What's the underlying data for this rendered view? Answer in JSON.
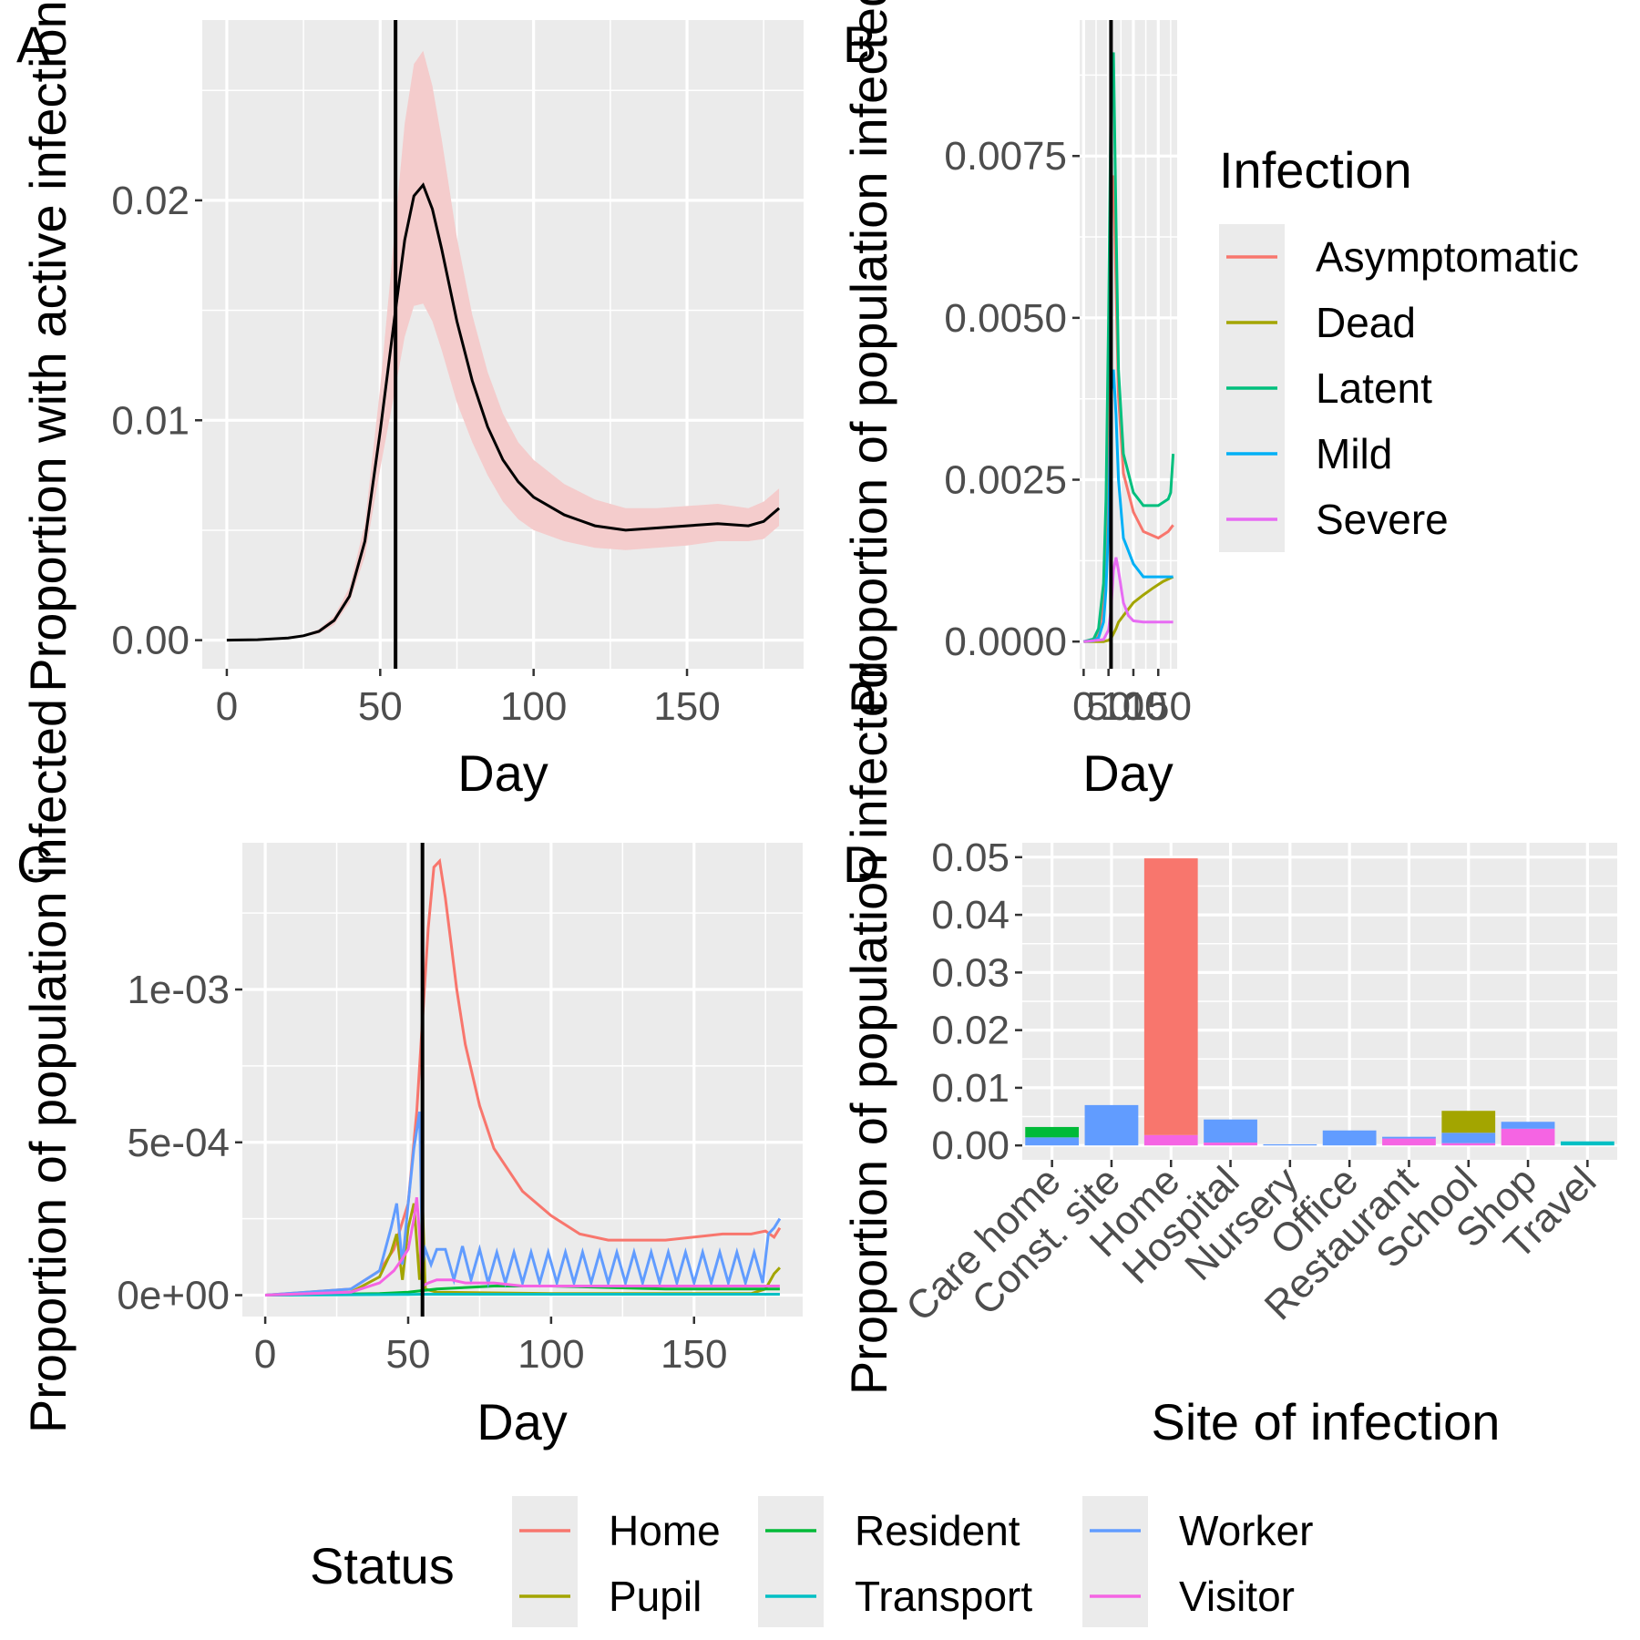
{
  "chart_data": [
    {
      "panel": "A",
      "type": "line",
      "xlabel": "Day",
      "ylabel": "Proportion with active infection",
      "xlim": [
        -8,
        188
      ],
      "ylim": [
        -0.0013,
        0.0282
      ],
      "xticks": [
        0,
        50,
        100,
        150
      ],
      "xtick_labels": [
        "0",
        "50",
        "100",
        "150"
      ],
      "yticks": [
        0,
        0.01,
        0.02
      ],
      "ytick_labels": [
        "0.00",
        "0.01",
        "0.02"
      ],
      "vline": 55,
      "ribbon_color": "#f4cccc",
      "line_color": "#000000",
      "x": [
        0,
        10,
        20,
        25,
        30,
        35,
        40,
        45,
        50,
        55,
        58,
        61,
        64,
        67,
        70,
        75,
        80,
        85,
        90,
        95,
        100,
        110,
        120,
        130,
        140,
        150,
        160,
        170,
        175,
        180
      ],
      "y": [
        0,
        2e-05,
        0.0001,
        0.0002,
        0.0004,
        0.0009,
        0.002,
        0.0045,
        0.0095,
        0.015,
        0.0182,
        0.0202,
        0.0207,
        0.0196,
        0.0178,
        0.0145,
        0.0118,
        0.0097,
        0.0082,
        0.0072,
        0.0065,
        0.0057,
        0.0052,
        0.005,
        0.0051,
        0.0052,
        0.0053,
        0.0052,
        0.0054,
        0.006
      ],
      "lower": [
        0,
        1e-05,
        8e-05,
        0.00016,
        0.0003,
        0.0007,
        0.0017,
        0.0038,
        0.0078,
        0.0115,
        0.0138,
        0.0152,
        0.0153,
        0.0145,
        0.0132,
        0.0108,
        0.009,
        0.0075,
        0.0063,
        0.0055,
        0.005,
        0.0045,
        0.0042,
        0.0041,
        0.0042,
        0.0043,
        0.0045,
        0.0045,
        0.0046,
        0.0052
      ],
      "upper": [
        0,
        3e-05,
        0.00013,
        0.00025,
        0.0005,
        0.0011,
        0.0024,
        0.0053,
        0.0115,
        0.019,
        0.0235,
        0.0262,
        0.0268,
        0.0252,
        0.0228,
        0.0183,
        0.0148,
        0.0122,
        0.0103,
        0.009,
        0.0082,
        0.0071,
        0.0064,
        0.006,
        0.006,
        0.0061,
        0.0062,
        0.006,
        0.0063,
        0.0069
      ]
    },
    {
      "panel": "B",
      "type": "line",
      "xlabel": "Day",
      "ylabel": "Proportion of population infected",
      "xlim": [
        -8,
        188
      ],
      "ylim": [
        -0.00042,
        0.0096
      ],
      "xticks": [
        0,
        50,
        100,
        150
      ],
      "xtick_labels": [
        "0",
        "50",
        "100",
        "150"
      ],
      "yticks": [
        0,
        0.0025,
        0.005,
        0.0075
      ],
      "ytick_labels": [
        "0.0000",
        "0.0025",
        "0.0050",
        "0.0075"
      ],
      "vline": 55,
      "legend_title": "Infection",
      "legend_position": "right",
      "series": [
        {
          "name": "Asymptomatic",
          "color": "#F8766D",
          "x": [
            0,
            20,
            30,
            40,
            45,
            50,
            55,
            60,
            65,
            70,
            80,
            100,
            120,
            150,
            170,
            180
          ],
          "y": [
            0,
            2e-05,
            0.0001,
            0.0006,
            0.0015,
            0.0035,
            0.0068,
            0.0072,
            0.0055,
            0.0038,
            0.0026,
            0.002,
            0.0017,
            0.0016,
            0.0017,
            0.0018
          ]
        },
        {
          "name": "Dead",
          "color": "#A3A500",
          "x": [
            0,
            40,
            50,
            55,
            60,
            65,
            70,
            80,
            90,
            100,
            120,
            140,
            160,
            180
          ],
          "y": [
            0,
            0,
            2e-05,
            5e-05,
            0.00012,
            0.0002,
            0.0003,
            0.0004,
            0.0005,
            0.0006,
            0.00072,
            0.00083,
            0.00093,
            0.001
          ]
        },
        {
          "name": "Latent",
          "color": "#00BF7D",
          "x": [
            0,
            20,
            30,
            40,
            45,
            50,
            55,
            60,
            65,
            70,
            80,
            100,
            120,
            150,
            170,
            175,
            180
          ],
          "y": [
            0,
            4e-05,
            0.0002,
            0.0009,
            0.0022,
            0.005,
            0.0085,
            0.0091,
            0.0065,
            0.0042,
            0.0029,
            0.0023,
            0.0021,
            0.0021,
            0.0022,
            0.0023,
            0.0029
          ]
        },
        {
          "name": "Mild",
          "color": "#00B0F6",
          "x": [
            0,
            20,
            30,
            40,
            45,
            50,
            55,
            60,
            65,
            70,
            80,
            100,
            120,
            150,
            180
          ],
          "y": [
            0,
            1e-05,
            6e-05,
            0.0003,
            0.0008,
            0.0018,
            0.0038,
            0.0042,
            0.0035,
            0.0025,
            0.0016,
            0.0012,
            0.001,
            0.001,
            0.001
          ]
        },
        {
          "name": "Severe",
          "color": "#E76BF3",
          "x": [
            0,
            40,
            50,
            55,
            60,
            65,
            70,
            80,
            90,
            100,
            120,
            150,
            180
          ],
          "y": [
            0,
            3e-05,
            0.00018,
            0.0005,
            0.0011,
            0.0013,
            0.0011,
            0.0006,
            0.0004,
            0.00032,
            0.0003,
            0.0003,
            0.0003
          ]
        }
      ]
    },
    {
      "panel": "C",
      "type": "line",
      "xlabel": "Day",
      "ylabel": "Proportion of population infected",
      "xlim": [
        -8,
        188
      ],
      "ylim": [
        -7e-05,
        0.00148
      ],
      "xticks": [
        0,
        50,
        100,
        150
      ],
      "xtick_labels": [
        "0",
        "50",
        "100",
        "150"
      ],
      "yticks": [
        0,
        0.0005,
        0.001
      ],
      "ytick_labels": [
        "0e+00",
        "5e-04",
        "1e-03"
      ],
      "vline": 55,
      "legend_title": "Status",
      "legend_position": "bottom",
      "series": [
        {
          "name": "Home",
          "color": "#F8766D",
          "x": [
            0,
            30,
            40,
            45,
            50,
            53,
            55,
            57,
            59,
            61,
            63,
            65,
            67,
            70,
            75,
            80,
            90,
            100,
            110,
            120,
            140,
            160,
            170,
            175,
            178,
            180
          ],
          "y": [
            0,
            2e-05,
            8e-05,
            0.00015,
            0.0003,
            0.0006,
            0.0009,
            0.0012,
            0.0014,
            0.00142,
            0.0013,
            0.00115,
            0.001,
            0.00082,
            0.00062,
            0.00048,
            0.00034,
            0.00026,
            0.0002,
            0.00018,
            0.00018,
            0.0002,
            0.0002,
            0.00021,
            0.00019,
            0.00022
          ]
        },
        {
          "name": "Pupil",
          "color": "#A3A500",
          "x": [
            0,
            30,
            40,
            44,
            46,
            48,
            50,
            52,
            54,
            55,
            56,
            60,
            100,
            170,
            175,
            178,
            180
          ],
          "y": [
            0,
            1e-05,
            6e-05,
            0.00014,
            0.0002,
            5e-05,
            0.00022,
            0.0003,
            5e-05,
            0.0003,
            2e-05,
            1e-05,
            5e-06,
            5e-06,
            2e-05,
            7e-05,
            9e-05
          ]
        },
        {
          "name": "Resident",
          "color": "#00BA38",
          "x": [
            0,
            40,
            50,
            55,
            60,
            70,
            80,
            90,
            100,
            120,
            140,
            160,
            180
          ],
          "y": [
            0,
            5e-06,
            1e-05,
            1.5e-05,
            2e-05,
            2.5e-05,
            3e-05,
            3e-05,
            3e-05,
            2.5e-05,
            2e-05,
            2e-05,
            2e-05
          ]
        },
        {
          "name": "Transport",
          "color": "#00BFC4",
          "x": [
            0,
            50,
            55,
            60,
            100,
            180
          ],
          "y": [
            0,
            2e-06,
            3e-06,
            3e-06,
            3e-06,
            3e-06
          ]
        },
        {
          "name": "Worker",
          "color": "#619CFF",
          "x": [
            0,
            30,
            40,
            44,
            46,
            48,
            50,
            52,
            54,
            55,
            56,
            58,
            60,
            63,
            66,
            69,
            72,
            75,
            78,
            81,
            84,
            87,
            90,
            93,
            96,
            99,
            102,
            105,
            108,
            111,
            114,
            117,
            120,
            123,
            126,
            129,
            132,
            135,
            138,
            141,
            144,
            147,
            150,
            153,
            156,
            159,
            162,
            165,
            168,
            171,
            174,
            176,
            178,
            180
          ],
          "y": [
            0,
            2e-05,
            8e-05,
            0.00022,
            0.0003,
            0.0001,
            0.0003,
            0.00048,
            0.0006,
            0.0001,
            0.00015,
            0.0001,
            0.00015,
            0.00015,
            5e-05,
            0.00016,
            5e-05,
            0.00015,
            4e-05,
            0.00014,
            4e-05,
            0.00014,
            4e-05,
            0.00014,
            4e-05,
            0.00014,
            4e-05,
            0.00014,
            4e-05,
            0.00014,
            4e-05,
            0.00014,
            4e-05,
            0.00014,
            4e-05,
            0.00014,
            4e-05,
            0.00014,
            4e-05,
            0.00014,
            4e-05,
            0.00014,
            4e-05,
            0.00014,
            4e-05,
            0.00014,
            4e-05,
            0.00014,
            4e-05,
            0.00014,
            4e-05,
            0.0002,
            0.00022,
            0.00025
          ]
        },
        {
          "name": "Visitor",
          "color": "#F564E3",
          "x": [
            0,
            30,
            40,
            45,
            48,
            50,
            52,
            53,
            54,
            55,
            57,
            60,
            65,
            70,
            80,
            90,
            100,
            120,
            140,
            160,
            180
          ],
          "y": [
            0,
            1e-05,
            4e-05,
            8e-05,
            0.00012,
            0.00015,
            0.00025,
            0.00032,
            0.0002,
            3e-05,
            4e-05,
            5e-05,
            5e-05,
            4e-05,
            4e-05,
            3e-05,
            3e-05,
            3e-05,
            3e-05,
            3e-05,
            3e-05
          ]
        }
      ]
    },
    {
      "panel": "D",
      "type": "bar",
      "stacked": true,
      "xlabel": "Site of infection",
      "ylabel": "Proportion of population infected",
      "categories": [
        "Care home",
        "Const. site",
        "Home",
        "Hospital",
        "Nursery",
        "Office",
        "Restaurant",
        "School",
        "Shop",
        "Travel"
      ],
      "ylim": [
        -0.0025,
        0.0525
      ],
      "yticks": [
        0,
        0.01,
        0.02,
        0.03,
        0.04,
        0.05
      ],
      "ytick_labels": [
        "0.00",
        "0.01",
        "0.02",
        "0.03",
        "0.04",
        "0.05"
      ],
      "series": [
        {
          "name": "Home",
          "color": "#F8766D",
          "values": [
            0,
            0,
            0.048,
            0,
            0,
            0,
            0,
            0,
            0,
            0
          ]
        },
        {
          "name": "Pupil",
          "color": "#A3A500",
          "values": [
            0,
            0,
            0,
            0,
            0,
            0,
            0,
            0.0038,
            0,
            0
          ]
        },
        {
          "name": "Resident",
          "color": "#00BA38",
          "values": [
            0.0018,
            0,
            0,
            0,
            0,
            0,
            0,
            0,
            0,
            0
          ]
        },
        {
          "name": "Transport",
          "color": "#00BFC4",
          "values": [
            0,
            0,
            0,
            0,
            0,
            0,
            0,
            0,
            0,
            0.0007
          ]
        },
        {
          "name": "Worker",
          "color": "#619CFF",
          "values": [
            0.0014,
            0.007,
            0,
            0.004,
            0.0002,
            0.0026,
            0.0003,
            0.0018,
            0.0012,
            0
          ]
        },
        {
          "name": "Visitor",
          "color": "#F564E3",
          "values": [
            0,
            0,
            0.0018,
            0.0005,
            0,
            0,
            0.0012,
            0.0004,
            0.0029,
            0
          ]
        }
      ]
    }
  ],
  "panel_tags": [
    "A",
    "B",
    "C",
    "D"
  ],
  "legend_infection": {
    "title": "Infection",
    "items": [
      {
        "label": "Asymptomatic",
        "color": "#F8766D"
      },
      {
        "label": "Dead",
        "color": "#A3A500"
      },
      {
        "label": "Latent",
        "color": "#00BF7D"
      },
      {
        "label": "Mild",
        "color": "#00B0F6"
      },
      {
        "label": "Severe",
        "color": "#E76BF3"
      }
    ]
  },
  "legend_status": {
    "title": "Status",
    "items": [
      {
        "label": "Home",
        "color": "#F8766D"
      },
      {
        "label": "Pupil",
        "color": "#A3A500"
      },
      {
        "label": "Resident",
        "color": "#00BA38"
      },
      {
        "label": "Transport",
        "color": "#00BFC4"
      },
      {
        "label": "Worker",
        "color": "#619CFF"
      },
      {
        "label": "Visitor",
        "color": "#F564E3"
      }
    ]
  }
}
